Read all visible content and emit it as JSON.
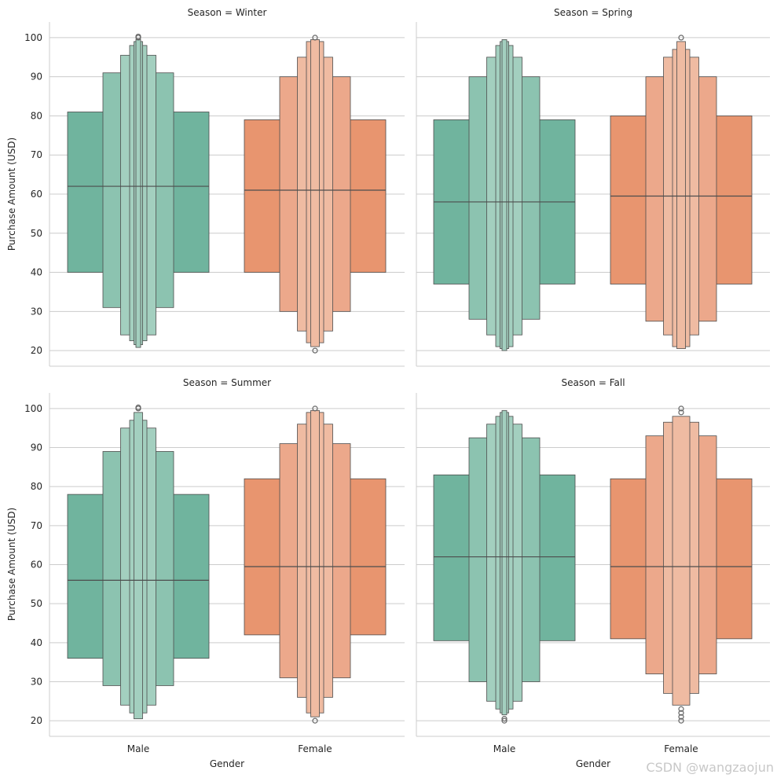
{
  "figure": {
    "watermark": "CSDN @wangzaojun",
    "ylabel": "Purchase Amount (USD)",
    "xlabel": "Gender"
  },
  "chart_data": {
    "type": "boxen",
    "x_categories": [
      "Male",
      "Female"
    ],
    "ylim": [
      16,
      104
    ],
    "yticks": [
      20,
      30,
      40,
      50,
      60,
      70,
      80,
      90,
      100
    ],
    "grid": "horizontal",
    "colors": {
      "Male": [
        "#70b49e",
        "#8cc3b0",
        "#a3cfbf"
      ],
      "Female": [
        "#e8956f",
        "#eca88b",
        "#efbba2"
      ],
      "edge": "#4d4d4d",
      "grid": "#cccccc",
      "spine": "#cccccc"
    },
    "panels": [
      {
        "title": "Season = Winter",
        "groups": [
          {
            "name": "Male",
            "median": 62,
            "boxes": [
              [
                40,
                81
              ],
              [
                31,
                91
              ],
              [
                24,
                95.5
              ],
              [
                22.5,
                98
              ],
              [
                21.5,
                99
              ],
              [
                20.8,
                99.5
              ]
            ],
            "outliers": [
              100,
              100.3
            ]
          },
          {
            "name": "Female",
            "median": 61,
            "boxes": [
              [
                40,
                79
              ],
              [
                30,
                90
              ],
              [
                25,
                95
              ],
              [
                22,
                99
              ],
              [
                21,
                99.5
              ]
            ],
            "outliers": [
              20,
              100
            ]
          }
        ]
      },
      {
        "title": "Season = Spring",
        "groups": [
          {
            "name": "Male",
            "median": 58,
            "boxes": [
              [
                37,
                79
              ],
              [
                28,
                90
              ],
              [
                24,
                95
              ],
              [
                21,
                98
              ],
              [
                20.5,
                99
              ],
              [
                20,
                99.5
              ]
            ],
            "outliers": []
          },
          {
            "name": "Female",
            "median": 59.5,
            "boxes": [
              [
                37,
                80
              ],
              [
                27.5,
                90
              ],
              [
                24,
                95
              ],
              [
                21,
                97
              ],
              [
                20.5,
                99
              ]
            ],
            "outliers": [
              100
            ]
          }
        ]
      },
      {
        "title": "Season = Summer",
        "groups": [
          {
            "name": "Male",
            "median": 56,
            "boxes": [
              [
                36,
                78
              ],
              [
                29,
                89
              ],
              [
                24,
                95
              ],
              [
                22,
                97
              ],
              [
                20.5,
                99
              ]
            ],
            "outliers": [
              100,
              100.3
            ]
          },
          {
            "name": "Female",
            "median": 59.5,
            "boxes": [
              [
                42,
                82
              ],
              [
                31,
                91
              ],
              [
                26,
                96
              ],
              [
                22,
                99
              ],
              [
                21,
                99.5
              ]
            ],
            "outliers": [
              20,
              100
            ]
          }
        ]
      },
      {
        "title": "Season = Fall",
        "groups": [
          {
            "name": "Male",
            "median": 62,
            "boxes": [
              [
                40.5,
                83
              ],
              [
                30,
                92.5
              ],
              [
                25,
                96
              ],
              [
                23,
                98
              ],
              [
                22,
                99
              ],
              [
                21.5,
                99.5
              ]
            ],
            "outliers": [
              20,
              20.5
            ]
          },
          {
            "name": "Female",
            "median": 59.5,
            "boxes": [
              [
                41,
                82
              ],
              [
                32,
                93
              ],
              [
                27,
                96.5
              ],
              [
                24,
                98
              ]
            ],
            "outliers": [
              20,
              21,
              22,
              23,
              99,
              100
            ]
          }
        ]
      }
    ]
  }
}
